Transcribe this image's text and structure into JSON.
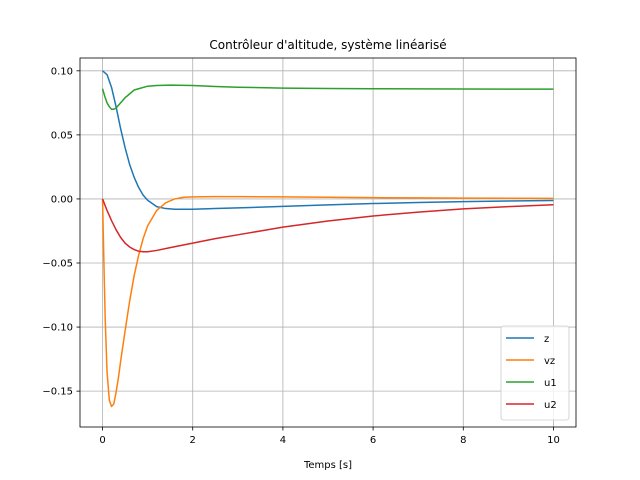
{
  "chart_data": {
    "type": "line",
    "title": "Contrôleur d'altitude, système linéarisé",
    "xlabel": "Temps [s]",
    "ylabel": "",
    "xlim": [
      -0.5,
      10.5
    ],
    "ylim": [
      -0.178,
      0.11
    ],
    "xticks": [
      0,
      2,
      4,
      6,
      8,
      10
    ],
    "yticks": [
      0.1,
      0.05,
      0.0,
      -0.05,
      -0.1,
      -0.15
    ],
    "xtick_labels": [
      "0",
      "2",
      "4",
      "6",
      "8",
      "10"
    ],
    "ytick_labels": [
      "0.10",
      "0.05",
      "0.00",
      "−0.05",
      "−0.10",
      "−0.15"
    ],
    "grid": true,
    "legend_position": "lower-right",
    "series": [
      {
        "name": "z",
        "color": "#1f77b4",
        "x": [
          0,
          0.1,
          0.2,
          0.3,
          0.4,
          0.5,
          0.6,
          0.7,
          0.8,
          0.9,
          1.0,
          1.2,
          1.4,
          1.6,
          1.8,
          2.0,
          2.5,
          3.0,
          4.0,
          5.0,
          6.0,
          7.0,
          8.0,
          9.0,
          10.0
        ],
        "y": [
          0.1,
          0.097,
          0.087,
          0.072,
          0.055,
          0.04,
          0.027,
          0.017,
          0.009,
          0.003,
          -0.001,
          -0.006,
          -0.0075,
          -0.008,
          -0.008,
          -0.008,
          -0.0075,
          -0.007,
          -0.0058,
          -0.0046,
          -0.0036,
          -0.0028,
          -0.0021,
          -0.0016,
          -0.0012
        ]
      },
      {
        "name": "vz",
        "color": "#ff7f0e",
        "x": [
          0,
          0.03,
          0.06,
          0.1,
          0.15,
          0.2,
          0.25,
          0.3,
          0.35,
          0.4,
          0.5,
          0.6,
          0.7,
          0.8,
          0.9,
          1.0,
          1.2,
          1.4,
          1.6,
          1.8,
          2.0,
          2.5,
          3.0,
          4.0,
          5.0,
          6.0,
          7.0,
          8.0,
          9.0,
          10.0
        ],
        "y": [
          0,
          -0.05,
          -0.095,
          -0.135,
          -0.157,
          -0.162,
          -0.16,
          -0.151,
          -0.14,
          -0.127,
          -0.103,
          -0.08,
          -0.06,
          -0.044,
          -0.031,
          -0.021,
          -0.009,
          -0.003,
          0.0,
          0.0013,
          0.0016,
          0.0018,
          0.0018,
          0.0016,
          0.0013,
          0.001,
          0.0008,
          0.0006,
          0.0005,
          0.0004
        ]
      },
      {
        "name": "u1",
        "color": "#2ca02c",
        "x": [
          0,
          0.05,
          0.1,
          0.15,
          0.2,
          0.25,
          0.3,
          0.4,
          0.5,
          0.6,
          0.7,
          0.8,
          1.0,
          1.2,
          1.5,
          2.0,
          2.5,
          3.0,
          4.0,
          5.0,
          6.0,
          7.0,
          8.0,
          9.0,
          10.0
        ],
        "y": [
          0.086,
          0.08,
          0.075,
          0.072,
          0.07,
          0.07,
          0.071,
          0.075,
          0.079,
          0.082,
          0.085,
          0.086,
          0.088,
          0.0885,
          0.0888,
          0.0885,
          0.0878,
          0.0872,
          0.0865,
          0.0862,
          0.086,
          0.0859,
          0.0858,
          0.0857,
          0.0857
        ]
      },
      {
        "name": "u2",
        "color": "#d62728",
        "x": [
          0,
          0.1,
          0.2,
          0.3,
          0.4,
          0.5,
          0.6,
          0.7,
          0.8,
          0.9,
          1.0,
          1.2,
          1.5,
          2.0,
          2.5,
          3.0,
          3.5,
          4.0,
          5.0,
          6.0,
          7.0,
          8.0,
          9.0,
          10.0
        ],
        "y": [
          0,
          -0.009,
          -0.017,
          -0.024,
          -0.03,
          -0.0345,
          -0.0375,
          -0.0395,
          -0.0408,
          -0.0412,
          -0.0412,
          -0.0402,
          -0.038,
          -0.0345,
          -0.031,
          -0.028,
          -0.025,
          -0.022,
          -0.0172,
          -0.0133,
          -0.0103,
          -0.0078,
          -0.006,
          -0.0045
        ]
      }
    ]
  }
}
